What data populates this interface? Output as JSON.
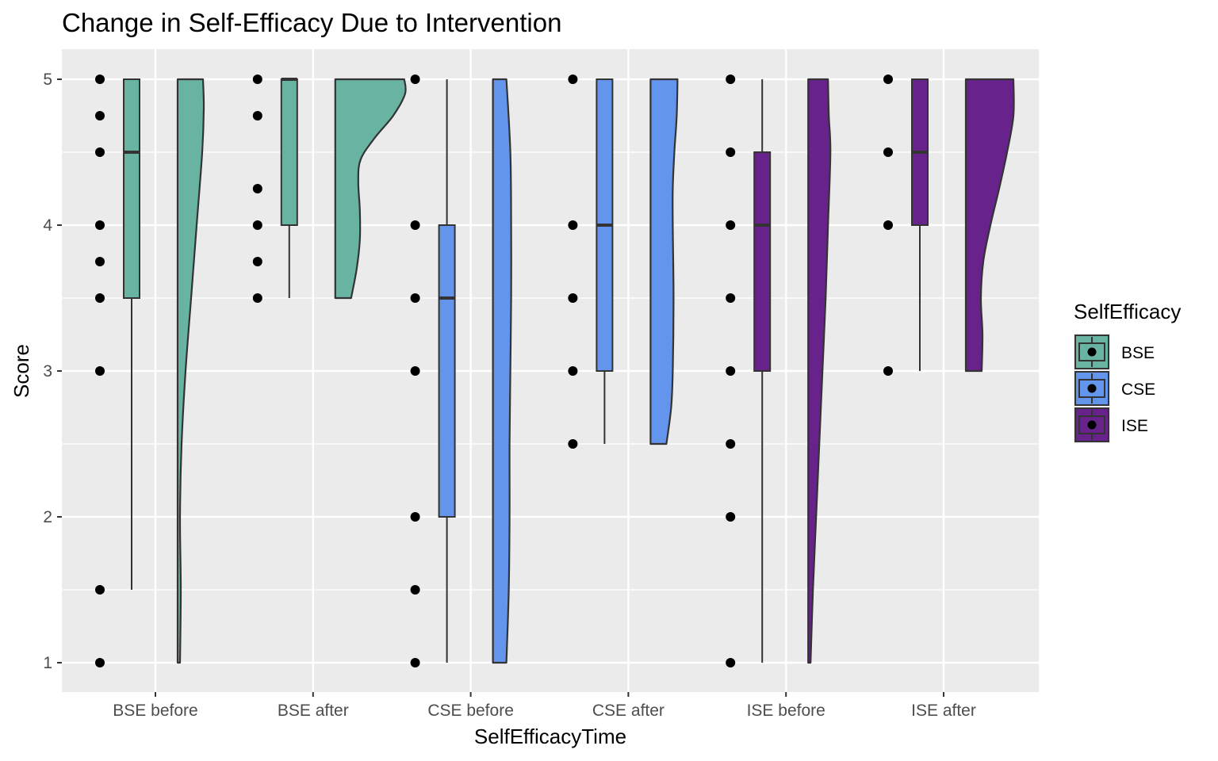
{
  "chart_data": {
    "type": "raincloud",
    "title": "Change in Self-Efficacy Due to Intervention",
    "xlabel": "SelfEfficacyTime",
    "ylabel": "Score",
    "ylim": [
      0.8,
      5.2
    ],
    "yticks": [
      1,
      2,
      3,
      4,
      5
    ],
    "grid": true,
    "categories": [
      "BSE before",
      "BSE after",
      "CSE before",
      "CSE after",
      "ISE before",
      "ISE after"
    ],
    "legend": {
      "title": "SelfEfficacy",
      "placement": "right",
      "entries": [
        {
          "label": "BSE",
          "color": "#69b3a2"
        },
        {
          "label": "CSE",
          "color": "#6495ed"
        },
        {
          "label": "ISE",
          "color": "#68228b"
        }
      ]
    },
    "groups": [
      {
        "category": "BSE before",
        "group": "BSE",
        "color": "#69b3a2",
        "points": [
          5,
          4.75,
          4.5,
          4,
          3.75,
          3.5,
          3,
          1.5,
          1
        ],
        "box": {
          "whisker_low": 1.5,
          "q1": 3.5,
          "median": 4.5,
          "q3": 5,
          "whisker_high": 5
        },
        "density": [
          [
            1,
            0.03
          ],
          [
            1.5,
            0.04
          ],
          [
            2,
            0.03
          ],
          [
            2.5,
            0.05
          ],
          [
            3,
            0.1
          ],
          [
            3.5,
            0.17
          ],
          [
            4,
            0.24
          ],
          [
            4.5,
            0.31
          ],
          [
            4.8,
            0.33
          ],
          [
            5,
            0.32
          ]
        ]
      },
      {
        "category": "BSE after",
        "group": "BSE",
        "color": "#69b3a2",
        "points": [
          5,
          4.75,
          4.25,
          4,
          3.75,
          3.5
        ],
        "box": {
          "whisker_low": 3.5,
          "q1": 4,
          "median": 5,
          "q3": 5,
          "whisker_high": 5
        },
        "density": [
          [
            3.5,
            0.2
          ],
          [
            3.7,
            0.27
          ],
          [
            3.9,
            0.31
          ],
          [
            4.1,
            0.31
          ],
          [
            4.3,
            0.29
          ],
          [
            4.45,
            0.32
          ],
          [
            4.6,
            0.5
          ],
          [
            4.75,
            0.73
          ],
          [
            4.9,
            0.88
          ],
          [
            5,
            0.87
          ]
        ]
      },
      {
        "category": "CSE before",
        "group": "CSE",
        "color": "#6495ed",
        "points": [
          5,
          4,
          3.5,
          3,
          2,
          1.5,
          1
        ],
        "box": {
          "whisker_low": 1,
          "q1": 2,
          "median": 3.5,
          "q3": 4,
          "whisker_high": 5
        },
        "density": [
          [
            1,
            0.17
          ],
          [
            1.5,
            0.2
          ],
          [
            2,
            0.21
          ],
          [
            2.5,
            0.21
          ],
          [
            3,
            0.22
          ],
          [
            3.5,
            0.23
          ],
          [
            4,
            0.23
          ],
          [
            4.5,
            0.22
          ],
          [
            5,
            0.17
          ]
        ]
      },
      {
        "category": "CSE after",
        "group": "CSE",
        "color": "#6495ed",
        "points": [
          5,
          4,
          3.5,
          3,
          2.5
        ],
        "box": {
          "whisker_low": 2.5,
          "q1": 3,
          "median": 4,
          "q3": 5,
          "whisker_high": 5
        },
        "density": [
          [
            2.5,
            0.2
          ],
          [
            2.75,
            0.26
          ],
          [
            3,
            0.28
          ],
          [
            3.5,
            0.29
          ],
          [
            4,
            0.28
          ],
          [
            4.25,
            0.28
          ],
          [
            4.5,
            0.3
          ],
          [
            4.75,
            0.33
          ],
          [
            5,
            0.34
          ]
        ]
      },
      {
        "category": "ISE before",
        "group": "ISE",
        "color": "#68228b",
        "points": [
          5,
          4.5,
          4,
          3.5,
          3,
          2.5,
          2,
          1
        ],
        "box": {
          "whisker_low": 1,
          "q1": 3,
          "median": 4,
          "q3": 4.5,
          "whisker_high": 5
        },
        "density": [
          [
            1,
            0.03
          ],
          [
            1.5,
            0.06
          ],
          [
            2,
            0.1
          ],
          [
            2.5,
            0.14
          ],
          [
            3,
            0.18
          ],
          [
            3.5,
            0.22
          ],
          [
            4,
            0.25
          ],
          [
            4.5,
            0.28
          ],
          [
            4.75,
            0.26
          ],
          [
            5,
            0.25
          ]
        ]
      },
      {
        "category": "ISE after",
        "group": "ISE",
        "color": "#68228b",
        "points": [
          5,
          4.5,
          4,
          3
        ],
        "box": {
          "whisker_low": 3,
          "q1": 4,
          "median": 4.5,
          "q3": 5,
          "whisker_high": 5
        },
        "density": [
          [
            3,
            0.2
          ],
          [
            3.25,
            0.21
          ],
          [
            3.5,
            0.19
          ],
          [
            3.75,
            0.22
          ],
          [
            4,
            0.31
          ],
          [
            4.25,
            0.42
          ],
          [
            4.5,
            0.52
          ],
          [
            4.75,
            0.6
          ],
          [
            5,
            0.6
          ]
        ]
      }
    ]
  }
}
